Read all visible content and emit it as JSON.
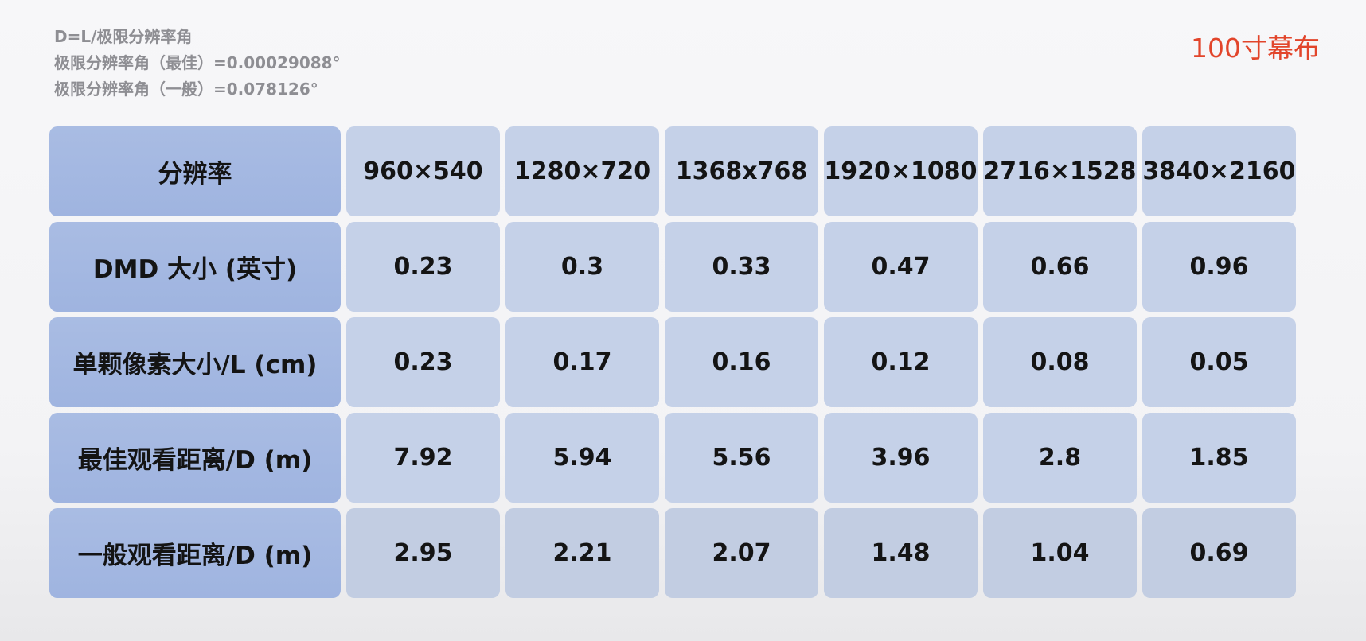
{
  "formula": {
    "line1": "D=L/极限分辨率角",
    "line2": "极限分辨率角（最佳）=0.00029088°",
    "line3": "极限分辨率角（一般）=0.078126°"
  },
  "screen_tag": "100寸幕布",
  "table": {
    "header_label": "分辨率",
    "resolutions": [
      "960×540",
      "1280×720",
      "1368x768",
      "1920×1080",
      "2716×1528",
      "3840×2160"
    ],
    "rows": [
      {
        "label": "DMD 大小 (英寸)",
        "values": [
          "0.23",
          "0.3",
          "0.33",
          "0.47",
          "0.66",
          "0.96"
        ]
      },
      {
        "label": "单颗像素大小/L (cm)",
        "values": [
          "0.23",
          "0.17",
          "0.16",
          "0.12",
          "0.08",
          "0.05"
        ]
      },
      {
        "label": "最佳观看距离/D (m)",
        "values": [
          "7.92",
          "5.94",
          "5.56",
          "3.96",
          "2.8",
          "1.85"
        ]
      },
      {
        "label": "一般观看距离/D (m)",
        "values": [
          "2.95",
          "2.21",
          "2.07",
          "1.48",
          "1.04",
          "0.69"
        ]
      }
    ]
  }
}
